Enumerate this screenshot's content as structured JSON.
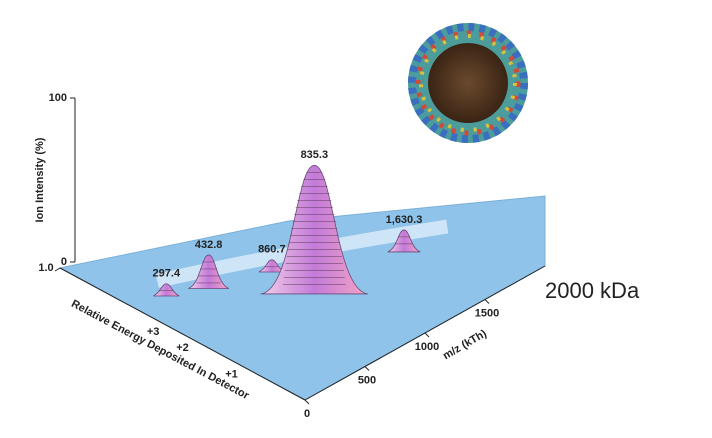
{
  "chart_data": {
    "type": "surface3d",
    "ylabel": "Ion Intensity (%)",
    "xlabel": "m/z (kTh)",
    "zlabel": "Relative Energy Deposited In Detector",
    "ylim": [
      0,
      100
    ],
    "yticks": [
      0,
      100
    ],
    "xlim": [
      0,
      2000
    ],
    "xticks": [
      0,
      500,
      1000,
      1500
    ],
    "zlim": [
      0,
      1
    ],
    "zticks": [
      {
        "value": 1,
        "label": "1.0"
      }
    ],
    "charge_labels": [
      "+3",
      "+2",
      "+1"
    ],
    "charge_energy": [
      0.62,
      0.5,
      0.3
    ],
    "peak_labels": [
      "297.4",
      "432.8",
      "860.7",
      "835.3",
      "1,630.3"
    ],
    "peak_mz": [
      253,
      483,
      867,
      874,
      1560
    ],
    "peak_energy": [
      0.69,
      0.63,
      0.56,
      0.39,
      0.36
    ],
    "peak_heights": [
      5,
      18,
      5,
      76,
      11
    ],
    "annotation": "2000 kDa",
    "color": "#8fc3ea"
  }
}
